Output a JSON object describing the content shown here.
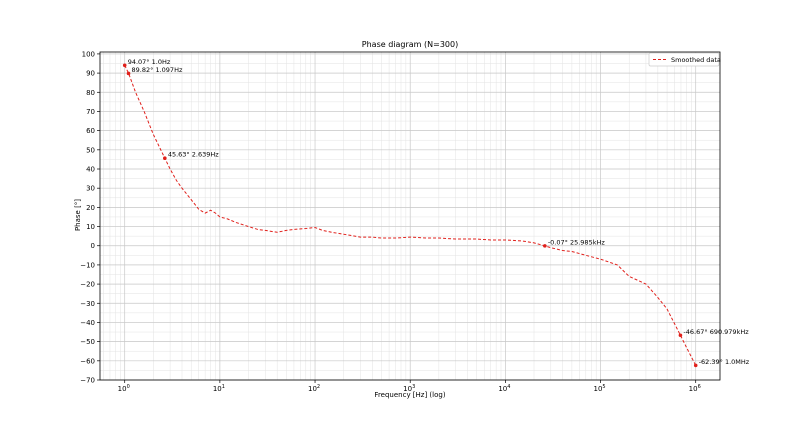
{
  "chart_data": {
    "type": "line",
    "title": "Phase diagram (N=300)",
    "xlabel": "Frequency [Hz] (log)",
    "ylabel": "Phase [°]",
    "xscale": "log",
    "xlim": [
      0.55,
      1800000.0
    ],
    "ylim": [
      -70,
      101
    ],
    "grid": true,
    "legend_position": "top-right",
    "colors": {
      "series": "#e0201b",
      "grid": "#c8c8c8",
      "axis": "#000000"
    },
    "x_ticks": [
      {
        "value": 1,
        "base": "10",
        "exp": "0"
      },
      {
        "value": 10,
        "base": "10",
        "exp": "1"
      },
      {
        "value": 100,
        "base": "10",
        "exp": "2"
      },
      {
        "value": 1000,
        "base": "10",
        "exp": "3"
      },
      {
        "value": 10000,
        "base": "10",
        "exp": "4"
      },
      {
        "value": 100000,
        "base": "10",
        "exp": "5"
      },
      {
        "value": 1000000,
        "base": "10",
        "exp": "6"
      }
    ],
    "y_ticks": [
      {
        "value": 100,
        "label": "100"
      },
      {
        "value": 90,
        "label": "90"
      },
      {
        "value": 80,
        "label": "80"
      },
      {
        "value": 70,
        "label": "70"
      },
      {
        "value": 60,
        "label": "60"
      },
      {
        "value": 50,
        "label": "50"
      },
      {
        "value": 40,
        "label": "40"
      },
      {
        "value": 30,
        "label": "30"
      },
      {
        "value": 20,
        "label": "20"
      },
      {
        "value": 10,
        "label": "10"
      },
      {
        "value": 0,
        "label": "0"
      },
      {
        "value": -10,
        "label": "−10"
      },
      {
        "value": -20,
        "label": "−20"
      },
      {
        "value": -30,
        "label": "−30"
      },
      {
        "value": -40,
        "label": "−40"
      },
      {
        "value": -50,
        "label": "−50"
      },
      {
        "value": -60,
        "label": "−60"
      },
      {
        "value": -70,
        "label": "−70"
      }
    ],
    "y_minor_step": 5,
    "series": [
      {
        "name": "Smoothed data",
        "style": "dashed",
        "x": [
          1,
          1.1,
          1.3,
          1.6,
          2,
          2.64,
          3,
          3.5,
          4,
          5,
          6,
          7,
          8,
          9,
          10,
          12,
          15,
          20,
          25,
          30,
          40,
          50,
          60,
          80,
          100,
          120,
          150,
          200,
          300,
          400,
          500,
          700,
          1000,
          1500,
          2000,
          3000,
          5000,
          7000,
          10000,
          15000,
          20000,
          25985,
          30000,
          40000,
          50000,
          70000,
          100000,
          150000,
          200000,
          300000,
          400000,
          500000,
          690979,
          800000,
          1000000
        ],
        "y": [
          94.07,
          89.82,
          80,
          70,
          58,
          45.63,
          40,
          34,
          30,
          24,
          19,
          17,
          18.5,
          17,
          15,
          14,
          12,
          10,
          8.5,
          8,
          7,
          8,
          8.5,
          9,
          9.5,
          8,
          7,
          6,
          4.5,
          4.5,
          4,
          4,
          4.5,
          4,
          4,
          3.5,
          3.5,
          3,
          3,
          2.5,
          1.5,
          -0.07,
          -1,
          -2.5,
          -3,
          -5,
          -7,
          -10,
          -16,
          -20,
          -27,
          -33,
          -46.67,
          -53,
          -62.39
        ]
      }
    ],
    "annotations": [
      {
        "text": "94.07° 1.0Hz",
        "x": 1.0,
        "y": 94.07
      },
      {
        "text": "89.82° 1.097Hz",
        "x": 1.097,
        "y": 89.82
      },
      {
        "text": "45.63° 2.639Hz",
        "x": 2.639,
        "y": 45.63
      },
      {
        "text": "-0.07° 25.985kHz",
        "x": 25985,
        "y": -0.07
      },
      {
        "text": "-46.67° 690.979kHz",
        "x": 690979,
        "y": -46.67
      },
      {
        "text": "-62.39° 1.0MHz",
        "x": 1000000,
        "y": -62.39
      }
    ]
  }
}
